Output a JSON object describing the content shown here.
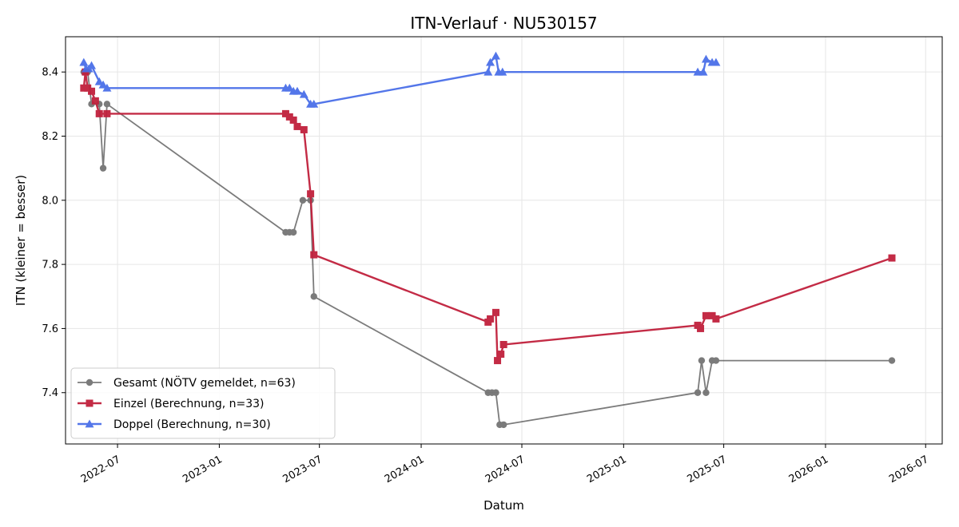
{
  "chart_data": {
    "type": "line",
    "title": "ITN-Verlauf · NU530157",
    "xlabel": "Datum",
    "ylabel": "ITN  (kleiner = besser)",
    "xlim": [
      "2022-03-29",
      "2026-07-31"
    ],
    "ylim": [
      7.24,
      8.51
    ],
    "x_ticks": [
      "2022-07",
      "2023-01",
      "2023-07",
      "2024-01",
      "2024-07",
      "2025-01",
      "2025-07",
      "2026-01",
      "2026-07"
    ],
    "y_ticks": [
      7.4,
      7.6,
      7.8,
      8.0,
      8.2,
      8.4
    ],
    "grid": true,
    "legend_position": "lower-left",
    "series": [
      {
        "name": "Gesamt (NÖTV gemeldet, n=63)",
        "color": "#444444",
        "marker": "circle",
        "points": [
          [
            "2022-05-01",
            8.4
          ],
          [
            "2022-05-08",
            8.4
          ],
          [
            "2022-05-15",
            8.3
          ],
          [
            "2022-05-29",
            8.3
          ],
          [
            "2022-06-05",
            8.1
          ],
          [
            "2022-06-12",
            8.3
          ],
          [
            "2023-05-01",
            7.9
          ],
          [
            "2023-05-08",
            7.9
          ],
          [
            "2023-05-15",
            7.9
          ],
          [
            "2023-06-01",
            8.0
          ],
          [
            "2023-06-15",
            8.0
          ],
          [
            "2023-06-21",
            7.7
          ],
          [
            "2024-05-01",
            7.4
          ],
          [
            "2024-05-08",
            7.4
          ],
          [
            "2024-05-15",
            7.4
          ],
          [
            "2024-05-22",
            7.3
          ],
          [
            "2024-05-29",
            7.3
          ],
          [
            "2025-05-15",
            7.4
          ],
          [
            "2025-05-22",
            7.5
          ],
          [
            "2025-05-30",
            7.4
          ],
          [
            "2025-06-10",
            7.5
          ],
          [
            "2025-06-17",
            7.5
          ],
          [
            "2026-05-01",
            7.5
          ]
        ]
      },
      {
        "name": "Einzel (Berechnung, n=33)",
        "color": "#c0203c",
        "marker": "square",
        "points": [
          [
            "2022-05-01",
            8.35
          ],
          [
            "2022-05-04",
            8.4
          ],
          [
            "2022-05-08",
            8.35
          ],
          [
            "2022-05-15",
            8.34
          ],
          [
            "2022-05-22",
            8.31
          ],
          [
            "2022-05-29",
            8.27
          ],
          [
            "2022-06-12",
            8.27
          ],
          [
            "2023-05-01",
            8.27
          ],
          [
            "2023-05-08",
            8.26
          ],
          [
            "2023-05-15",
            8.25
          ],
          [
            "2023-05-22",
            8.23
          ],
          [
            "2023-06-03",
            8.22
          ],
          [
            "2023-06-15",
            8.02
          ],
          [
            "2023-06-21",
            7.83
          ],
          [
            "2024-05-01",
            7.62
          ],
          [
            "2024-05-05",
            7.63
          ],
          [
            "2024-05-15",
            7.65
          ],
          [
            "2024-05-18",
            7.5
          ],
          [
            "2024-05-24",
            7.52
          ],
          [
            "2024-05-29",
            7.55
          ],
          [
            "2025-05-15",
            7.61
          ],
          [
            "2025-05-20",
            7.6
          ],
          [
            "2025-05-30",
            7.64
          ],
          [
            "2025-06-10",
            7.64
          ],
          [
            "2025-06-17",
            7.63
          ],
          [
            "2026-05-01",
            7.82
          ]
        ]
      },
      {
        "name": "Doppel (Berechnung, n=30)",
        "color": "#4a6fe8",
        "marker": "triangle",
        "points": [
          [
            "2022-05-01",
            8.43
          ],
          [
            "2022-05-05",
            8.41
          ],
          [
            "2022-05-10",
            8.41
          ],
          [
            "2022-05-15",
            8.42
          ],
          [
            "2022-05-29",
            8.37
          ],
          [
            "2022-06-05",
            8.36
          ],
          [
            "2022-06-12",
            8.35
          ],
          [
            "2023-05-01",
            8.35
          ],
          [
            "2023-05-08",
            8.35
          ],
          [
            "2023-05-15",
            8.34
          ],
          [
            "2023-05-22",
            8.34
          ],
          [
            "2023-06-03",
            8.33
          ],
          [
            "2023-06-15",
            8.3
          ],
          [
            "2023-06-21",
            8.3
          ],
          [
            "2024-05-01",
            8.4
          ],
          [
            "2024-05-05",
            8.43
          ],
          [
            "2024-05-15",
            8.45
          ],
          [
            "2024-05-20",
            8.4
          ],
          [
            "2024-05-27",
            8.4
          ],
          [
            "2025-05-15",
            8.4
          ],
          [
            "2025-05-25",
            8.4
          ],
          [
            "2025-05-30",
            8.44
          ],
          [
            "2025-06-10",
            8.43
          ],
          [
            "2025-06-17",
            8.43
          ]
        ]
      }
    ]
  }
}
